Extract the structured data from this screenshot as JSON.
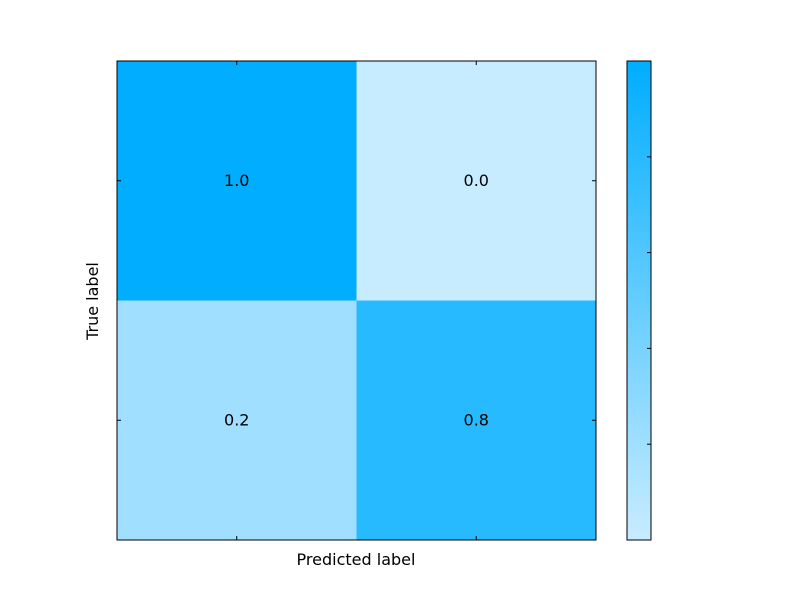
{
  "chart_data": {
    "type": "heatmap",
    "title": "",
    "xlabel": "Predicted label",
    "ylabel": "True label",
    "rows": 2,
    "cols": 2,
    "values": [
      [
        1.0,
        0.0
      ],
      [
        0.2,
        0.8
      ]
    ],
    "cell_labels": [
      [
        "1.0",
        "0.0"
      ],
      [
        "0.2",
        "0.8"
      ]
    ],
    "x_ticklabels": [],
    "y_ticklabels": [],
    "colorbar": {
      "vmin": 0.0,
      "vmax": 1.0,
      "tick_labels": []
    },
    "colors": {
      "low": "#c8ecff",
      "high": "#00adff",
      "frame": "#000000"
    },
    "grid": false
  }
}
